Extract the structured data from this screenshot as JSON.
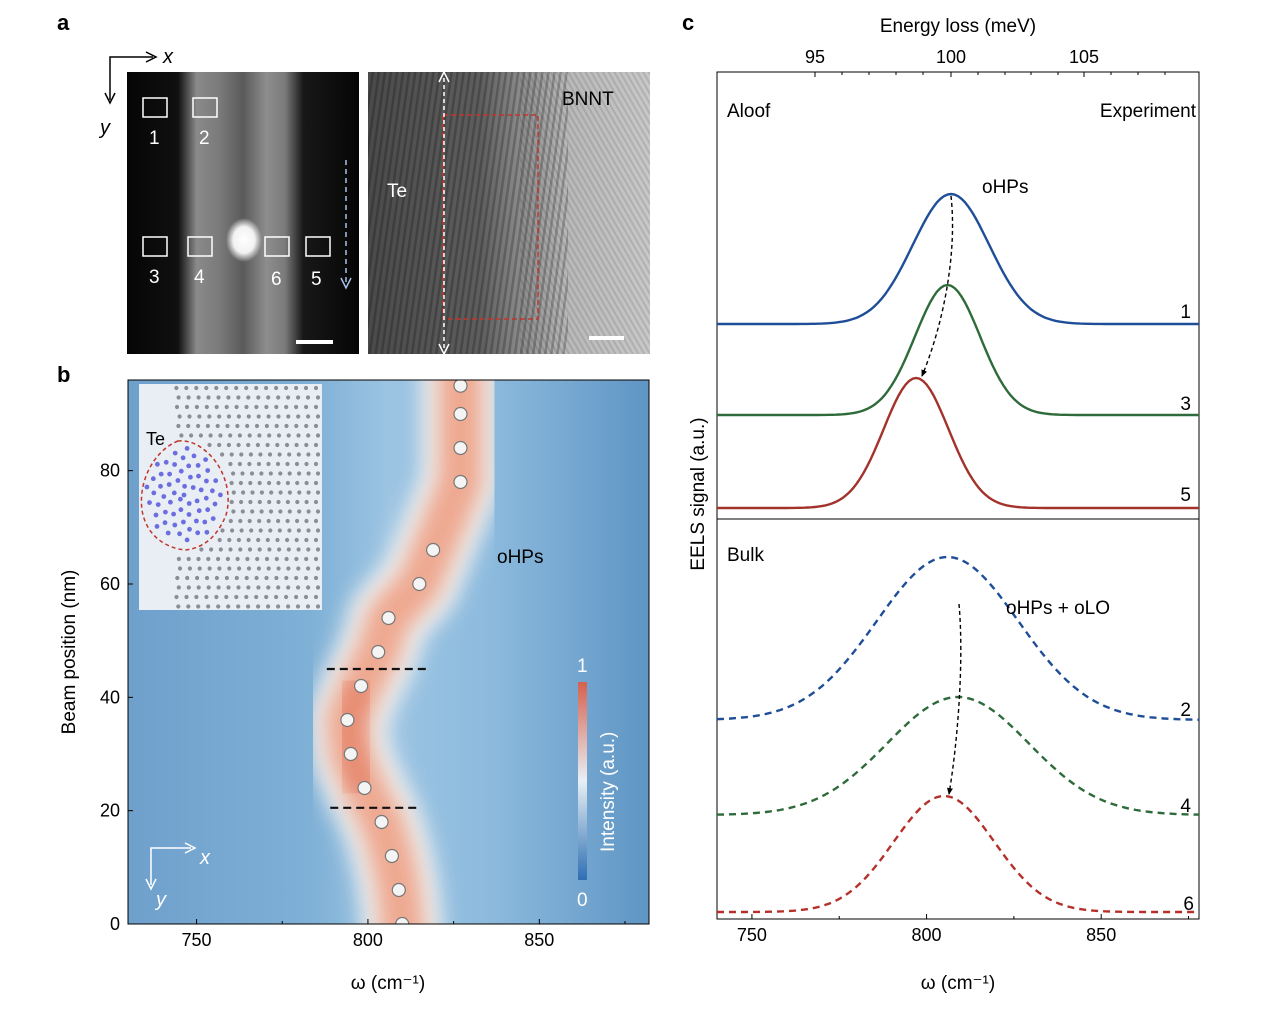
{
  "panels": {
    "a": {
      "letter": "a",
      "axis_x": "x",
      "axis_y": "y",
      "box_labels": [
        "1",
        "2",
        "3",
        "4",
        "6",
        "5"
      ],
      "te_label": "Te",
      "bnnt_label": "BNNT"
    },
    "b": {
      "letter": "b",
      "inset_label": "Te",
      "mode_label": "oHPs",
      "corner_x": "x",
      "corner_y": "y",
      "colorbar": {
        "label": "Intensity (a.u.)",
        "max_label": "1",
        "min_label": "0",
        "colors": [
          "#2e6fb3",
          "#e8f0f5",
          "#d6604d"
        ]
      },
      "xaxis": {
        "label": "ω (cm⁻¹)",
        "ticks": [
          "750",
          "800",
          "850"
        ],
        "range": [
          730,
          882
        ]
      },
      "yaxis": {
        "label": "Beam position (nm)",
        "ticks": [
          "0",
          "20",
          "40",
          "60",
          "80"
        ],
        "range": [
          0,
          96
        ]
      }
    },
    "c": {
      "letter": "c",
      "top_axis": {
        "label": "Energy loss (meV)",
        "ticks": [
          "95",
          "100",
          "105"
        ]
      },
      "aloof_label": "Aloof",
      "experiment_label": "Experiment",
      "ohps_label": "oHPs",
      "bulk_label": "Bulk",
      "bulk_mode_label": "oHPs + oLO",
      "ylabel": "EELS signal (a.u.)",
      "curve_labels_aloof": [
        "1",
        "3",
        "5"
      ],
      "curve_labels_bulk": [
        "2",
        "4",
        "6"
      ],
      "xaxis": {
        "label": "ω (cm⁻¹)",
        "ticks": [
          "750",
          "800",
          "850"
        ],
        "range": [
          740,
          878
        ]
      }
    }
  },
  "chart_data": [
    {
      "type": "heatmap",
      "panel": "b",
      "xlabel": "ω (cm⁻¹)",
      "ylabel": "Beam position (nm)",
      "xlim": [
        730,
        882
      ],
      "ylim": [
        0,
        96
      ],
      "series": [
        {
          "points": [
            [
              810,
              0
            ],
            [
              809,
              6
            ],
            [
              807,
              12
            ],
            [
              804,
              18
            ],
            [
              799,
              24
            ],
            [
              795,
              30
            ],
            [
              794,
              36
            ],
            [
              798,
              42
            ],
            [
              803,
              48
            ],
            [
              806,
              54
            ],
            [
              815,
              60
            ],
            [
              819,
              66
            ],
            [
              827,
              78
            ],
            [
              827,
              84
            ],
            [
              827,
              90
            ],
            [
              827,
              95
            ]
          ]
        }
      ],
      "dashed_lines": [
        {
          "y": 45,
          "x": [
            788,
            817
          ]
        },
        {
          "y": 20.5,
          "x": [
            789,
            815
          ]
        }
      ]
    },
    {
      "type": "line",
      "panel": "c",
      "xlabel": "ω (cm⁻¹)",
      "ylabel": "EELS signal (a.u.)",
      "xlim": [
        740,
        878
      ],
      "top_axis": {
        "label": "Energy loss (meV)",
        "ticks": [
          95,
          100,
          105
        ]
      },
      "series": [
        {
          "name": "1",
          "style": "solid",
          "color": "#1f4e98",
          "peak": 807,
          "width": 13,
          "baseline": 0,
          "amplitude": 1.0
        },
        {
          "name": "3",
          "style": "solid",
          "color": "#2e6b3a",
          "peak": 806,
          "width": 11,
          "baseline": 0,
          "amplitude": 1.0
        },
        {
          "name": "5",
          "style": "solid",
          "color": "#a3322a",
          "peak": 797,
          "width": 11,
          "baseline": 0,
          "amplitude": 1.0
        },
        {
          "name": "2",
          "style": "dashed",
          "color": "#1f4e98",
          "peak": 806,
          "width": 24,
          "baseline": 0,
          "amplitude": 1.0
        },
        {
          "name": "4",
          "style": "dashed",
          "color": "#2e6b3a",
          "peak": 809,
          "width": 24,
          "baseline": 0,
          "amplitude": 1.0
        },
        {
          "name": "6",
          "style": "dashed",
          "color": "#b5302a",
          "peak": 805,
          "width": 17,
          "baseline": 0,
          "amplitude": 1.0
        }
      ]
    }
  ]
}
